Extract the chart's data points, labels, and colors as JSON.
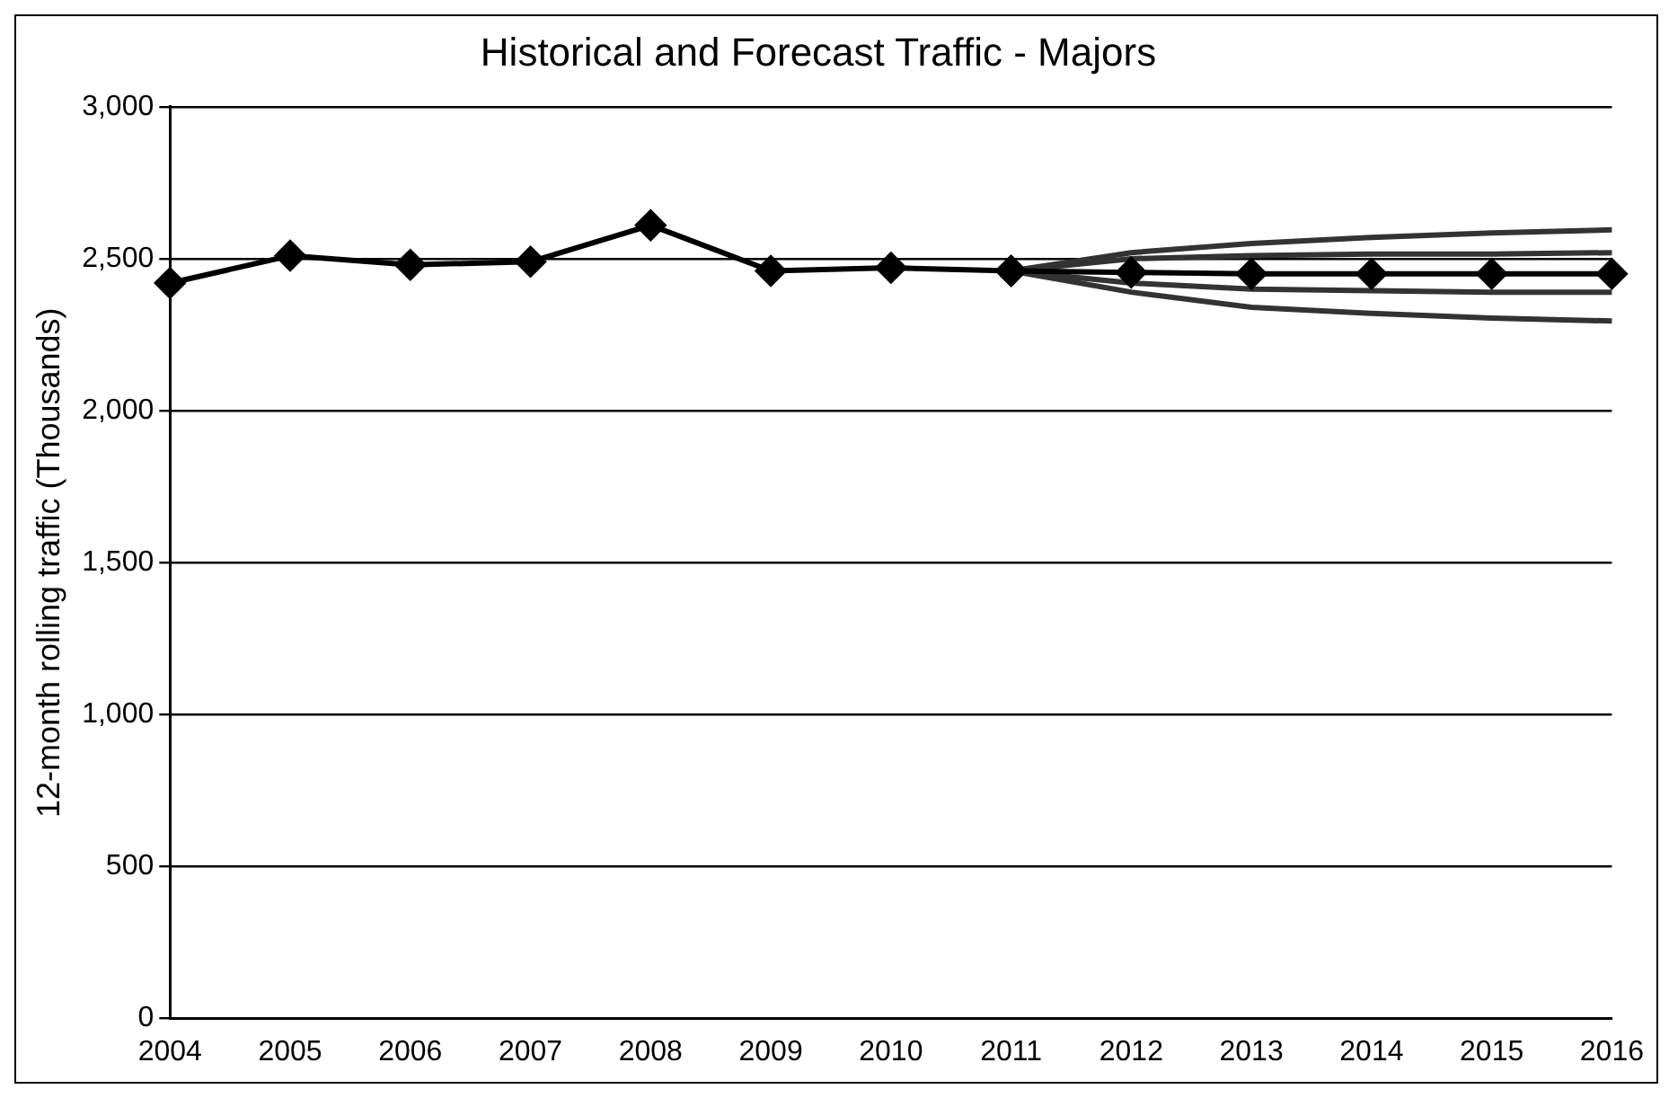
{
  "chart_data": {
    "type": "line",
    "title": "Historical and Forecast Traffic - Majors",
    "ylabel": "12-month rolling traffic (Thousands)",
    "categories": [
      "2004",
      "2005",
      "2006",
      "2007",
      "2008",
      "2009",
      "2010",
      "2011",
      "2012",
      "2013",
      "2014",
      "2015",
      "2016"
    ],
    "series": [
      {
        "color": "#000000",
        "marker": "diamond",
        "values": [
          2420,
          2510,
          2480,
          2490,
          2610,
          2460,
          2470,
          2460,
          null,
          null,
          null,
          null,
          null
        ]
      },
      {
        "color": "#000000",
        "marker": "diamond",
        "values": [
          null,
          null,
          null,
          null,
          null,
          null,
          null,
          2460,
          2455,
          2450,
          2450,
          2450,
          2450
        ]
      },
      {
        "color": "#333333",
        "marker": "none",
        "values": [
          null,
          null,
          null,
          null,
          null,
          null,
          null,
          2460,
          2520,
          2550,
          2570,
          2585,
          2595
        ]
      },
      {
        "color": "#333333",
        "marker": "none",
        "values": [
          null,
          null,
          null,
          null,
          null,
          null,
          null,
          2460,
          2500,
          2510,
          2515,
          2515,
          2520
        ]
      },
      {
        "color": "#333333",
        "marker": "none",
        "values": [
          null,
          null,
          null,
          null,
          null,
          null,
          null,
          2460,
          2420,
          2400,
          2395,
          2390,
          2390
        ]
      },
      {
        "color": "#333333",
        "marker": "none",
        "values": [
          null,
          null,
          null,
          null,
          null,
          null,
          null,
          2460,
          2390,
          2340,
          2320,
          2305,
          2295
        ]
      }
    ],
    "ylim": [
      0,
      3000
    ],
    "yticks": [
      {
        "value": 0,
        "label": "0"
      },
      {
        "value": 500,
        "label": "500"
      },
      {
        "value": 1000,
        "label": "1,000"
      },
      {
        "value": 1500,
        "label": "1,500"
      },
      {
        "value": 2000,
        "label": "2,000"
      },
      {
        "value": 2500,
        "label": "2,500"
      },
      {
        "value": 3000,
        "label": "3,000"
      }
    ],
    "grid": "y",
    "legend": false
  }
}
